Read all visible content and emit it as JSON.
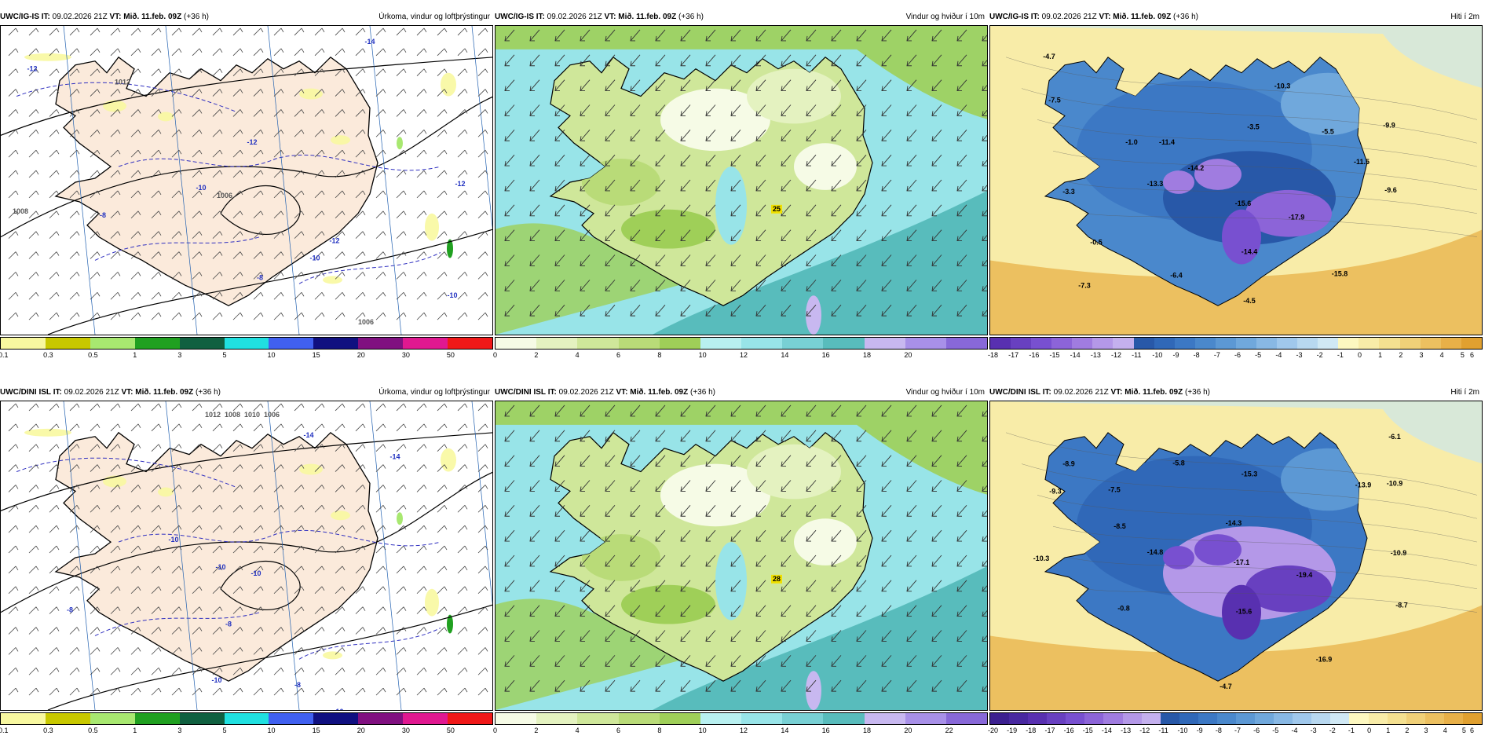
{
  "panels": [
    {
      "id": "p1",
      "model": "UWC/IG-IS",
      "it_label": "IT:",
      "it": "09.02.2026 21Z",
      "vt_label": "VT:",
      "vt": "Mið. 11.feb. 09Z",
      "lead": "(+36 h)",
      "title": "Úrkoma, vindur og loftþrýstingur",
      "type": "precip",
      "colors": [
        "#f8f8a0",
        "#c8c800",
        "#a8e870",
        "#20a020",
        "#106040",
        "#20e0e0",
        "#4060f0",
        "#101080",
        "#801080",
        "#e01890",
        "#f01818"
      ],
      "ticks": [
        "0.1",
        "0.3",
        "0.5",
        "1",
        "3",
        "5",
        "10",
        "15",
        "20",
        "30",
        "50"
      ],
      "labels": [
        {
          "t": "-14"
        },
        {
          "t": "-12"
        },
        {
          "t": "-12"
        },
        {
          "t": "-10"
        },
        {
          "t": "-8"
        },
        {
          "t": "-8"
        },
        {
          "t": "-10"
        },
        {
          "t": "-12"
        },
        {
          "t": "-12"
        },
        {
          "t": "-10"
        },
        {
          "t": "1012"
        },
        {
          "t": "1008"
        },
        {
          "t": "1006"
        },
        {
          "t": "1006"
        }
      ]
    },
    {
      "id": "p2",
      "model": "UWC/IG-IS",
      "it_label": "IT:",
      "it": "09.02.2026 21Z",
      "vt_label": "VT:",
      "vt": "Mið. 11.feb. 09Z",
      "lead": "(+36 h)",
      "title": "Vindur og hviður í 10m",
      "type": "wind",
      "colors": [
        "#f6fbe6",
        "#e4f2c0",
        "#cfe79a",
        "#b9db78",
        "#9fcf58",
        "#b8f0f0",
        "#98e4e8",
        "#78d0d4",
        "#58bcbc",
        "#c8b8f0",
        "#a890e8",
        "#8868d8"
      ],
      "ticks": [
        "0",
        "2",
        "4",
        "6",
        "8",
        "10",
        "12",
        "14",
        "16",
        "18",
        "20"
      ],
      "labels": [
        {
          "t": "25"
        }
      ]
    },
    {
      "id": "p3",
      "model": "UWC/IG-IS",
      "it_label": "IT:",
      "it": "09.02.2026 21Z",
      "vt_label": "VT:",
      "vt": "Mið. 11.feb. 09Z",
      "lead": "(+36 h)",
      "title": "Hiti í 2m",
      "type": "temp",
      "colors": [
        "#5830b0",
        "#6840c0",
        "#7850d0",
        "#8c64d8",
        "#a07ce0",
        "#b498e8",
        "#c4b0ee",
        "#2858a8",
        "#3068b8",
        "#3c78c4",
        "#4a88cc",
        "#5c98d4",
        "#70a8dc",
        "#88b8e4",
        "#a0c8ec",
        "#b8d8f0",
        "#d0e8f4",
        "#fdf8c0",
        "#f8eca8",
        "#f4e090",
        "#f0d078",
        "#ecc060",
        "#e8b048",
        "#e0a030"
      ],
      "ticks": [
        "-18",
        "-17",
        "-16",
        "-15",
        "-14",
        "-13",
        "-12",
        "-11",
        "-10",
        "-9",
        "-8",
        "-7",
        "-6",
        "-5",
        "-4",
        "-3",
        "-2",
        "-1",
        "0",
        "1",
        "2",
        "3",
        "4",
        "5",
        "6"
      ],
      "labels": [
        {
          "t": "-4.7"
        },
        {
          "t": "-7.5"
        },
        {
          "t": "-10.3"
        },
        {
          "t": "-11.4"
        },
        {
          "t": "-3.5"
        },
        {
          "t": "-5.5"
        },
        {
          "t": "-9.9"
        },
        {
          "t": "-1.0"
        },
        {
          "t": "-14.2"
        },
        {
          "t": "-11.5"
        },
        {
          "t": "-3.3"
        },
        {
          "t": "-13.3"
        },
        {
          "t": "-15.6"
        },
        {
          "t": "-9.6"
        },
        {
          "t": "-17.9"
        },
        {
          "t": "-0.5"
        },
        {
          "t": "-14.4"
        },
        {
          "t": "-6.4"
        },
        {
          "t": "-15.8"
        },
        {
          "t": "-7.3"
        },
        {
          "t": "-4.5"
        }
      ]
    },
    {
      "id": "p4",
      "model": "UWC/DINI ISL",
      "it_label": "IT:",
      "it": "09.02.2026 21Z",
      "vt_label": "VT:",
      "vt": "Mið. 11.feb. 09Z",
      "lead": "(+36 h)",
      "title": "Úrkoma, vindur og loftþrýstingur",
      "type": "precip",
      "colors": [
        "#f8f8a0",
        "#c8c800",
        "#a8e870",
        "#20a020",
        "#106040",
        "#20e0e0",
        "#4060f0",
        "#101080",
        "#801080",
        "#e01890",
        "#f01818"
      ],
      "ticks": [
        "0.1",
        "0.3",
        "0.5",
        "1",
        "3",
        "5",
        "10",
        "15",
        "20",
        "30",
        "50"
      ],
      "labels": [
        {
          "t": "-14"
        },
        {
          "t": "-14"
        },
        {
          "t": "-10"
        },
        {
          "t": "-10"
        },
        {
          "t": "-10"
        },
        {
          "t": "-8"
        },
        {
          "t": "-8"
        },
        {
          "t": "-10"
        },
        {
          "t": "-8"
        },
        {
          "t": "-10"
        },
        {
          "t": "1012"
        },
        {
          "t": "1008"
        },
        {
          "t": "1010"
        },
        {
          "t": "1006"
        }
      ]
    },
    {
      "id": "p5",
      "model": "UWC/DINI ISL",
      "it_label": "IT:",
      "it": "09.02.2026 21Z",
      "vt_label": "VT:",
      "vt": "Mið. 11.feb. 09Z",
      "lead": "(+36 h)",
      "title": "Vindur og hviður í 10m",
      "type": "wind",
      "colors": [
        "#f6fbe6",
        "#e4f2c0",
        "#cfe79a",
        "#b9db78",
        "#9fcf58",
        "#b8f0f0",
        "#98e4e8",
        "#78d0d4",
        "#58bcbc",
        "#c8b8f0",
        "#a890e8",
        "#8868d8"
      ],
      "ticks": [
        "0",
        "2",
        "4",
        "6",
        "8",
        "10",
        "12",
        "14",
        "16",
        "18",
        "20",
        "22"
      ],
      "labels": [
        {
          "t": "28"
        }
      ]
    },
    {
      "id": "p6",
      "model": "UWC/DINI ISL",
      "it_label": "IT:",
      "it": "09.02.2026 21Z",
      "vt_label": "VT:",
      "vt": "Mið. 11.feb. 09Z",
      "lead": "(+36 h)",
      "title": "Hiti í 2m",
      "type": "temp",
      "colors": [
        "#3c2090",
        "#4828a0",
        "#5830b0",
        "#6840c0",
        "#7850d0",
        "#8c64d8",
        "#a07ce0",
        "#b498e8",
        "#c4b0ee",
        "#2858a8",
        "#3068b8",
        "#3c78c4",
        "#4a88cc",
        "#5c98d4",
        "#70a8dc",
        "#88b8e4",
        "#a0c8ec",
        "#b8d8f0",
        "#d0e8f4",
        "#fdf8c0",
        "#f8eca8",
        "#f4e090",
        "#f0d078",
        "#ecc060",
        "#e8b048",
        "#e0a030"
      ],
      "ticks": [
        "-20",
        "-19",
        "-18",
        "-17",
        "-16",
        "-15",
        "-14",
        "-13",
        "-12",
        "-11",
        "-10",
        "-9",
        "-8",
        "-7",
        "-6",
        "-5",
        "-4",
        "-3",
        "-2",
        "-1",
        "0",
        "1",
        "2",
        "3",
        "4",
        "5",
        "6"
      ],
      "labels": [
        {
          "t": "-6.1"
        },
        {
          "t": "-8.9"
        },
        {
          "t": "-5.8"
        },
        {
          "t": "-15.3"
        },
        {
          "t": "-13.9"
        },
        {
          "t": "-10.9"
        },
        {
          "t": "-9.3"
        },
        {
          "t": "-7.5"
        },
        {
          "t": "-8.5"
        },
        {
          "t": "-14.3"
        },
        {
          "t": "-14.8"
        },
        {
          "t": "-17.1"
        },
        {
          "t": "-10.9"
        },
        {
          "t": "-10.3"
        },
        {
          "t": "-19.4"
        },
        {
          "t": "-0.8"
        },
        {
          "t": "-15.6"
        },
        {
          "t": "-8.7"
        },
        {
          "t": "-16.9"
        },
        {
          "t": "-4.7"
        }
      ]
    }
  ]
}
